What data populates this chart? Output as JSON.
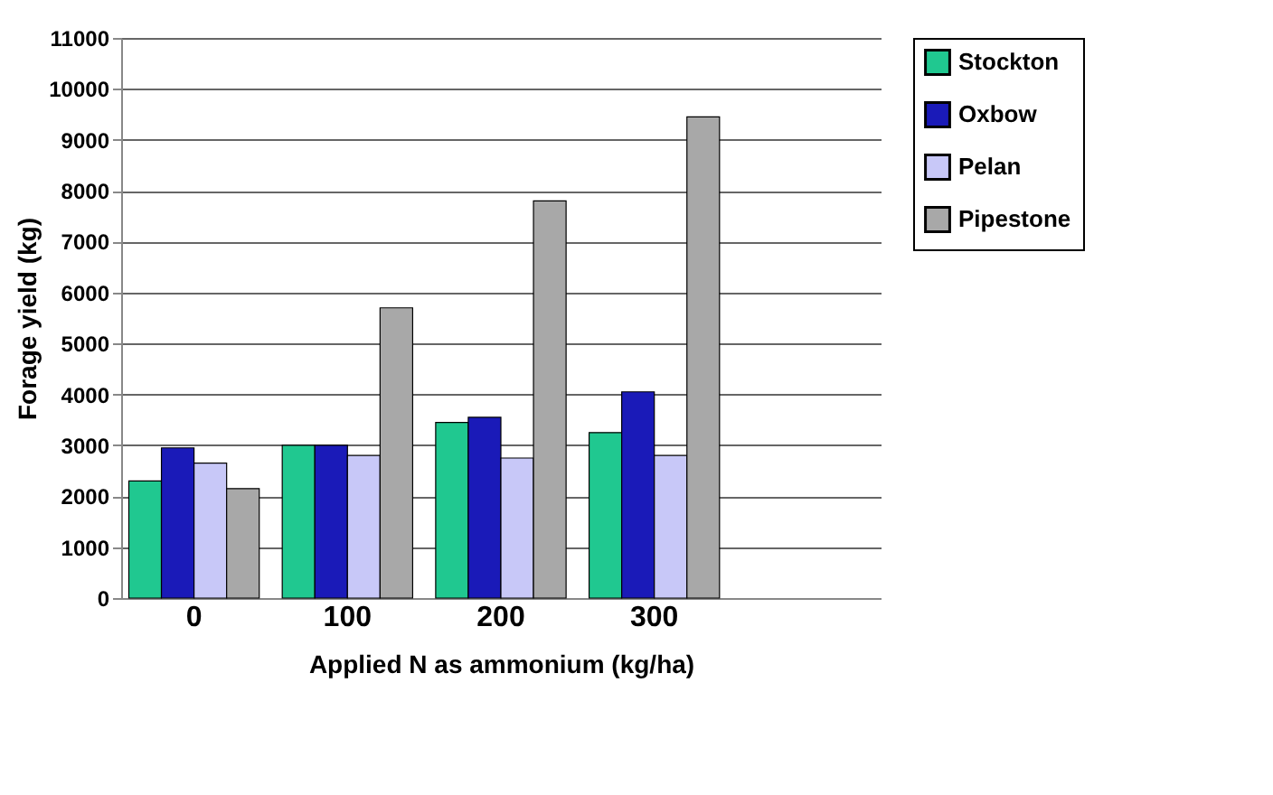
{
  "chart_data": {
    "type": "bar",
    "xlabel": "Applied N as ammonium (kg/ha)",
    "ylabel": "Forage yield (kg)",
    "categories": [
      "0",
      "100",
      "200",
      "300",
      null
    ],
    "series": [
      {
        "name": "Stockton",
        "color": "#20c890",
        "values": [
          2300,
          3000,
          3450,
          3250,
          null
        ]
      },
      {
        "name": "Oxbow",
        "color": "#1a1ab8",
        "values": [
          2950,
          3000,
          3550,
          4050,
          null
        ]
      },
      {
        "name": "Pelan",
        "color": "#c8c8f8",
        "values": [
          2650,
          2800,
          2750,
          2800,
          null
        ]
      },
      {
        "name": "Pipestone",
        "color": "#a8a8a8",
        "values": [
          2150,
          5700,
          7800,
          9450,
          null
        ]
      }
    ],
    "ylim": [
      0,
      11000
    ],
    "yticks": [
      0,
      1000,
      2000,
      3000,
      4000,
      5000,
      6000,
      7000,
      8000,
      9000,
      10000,
      11000
    ],
    "grid": "y",
    "legend": "top right"
  }
}
